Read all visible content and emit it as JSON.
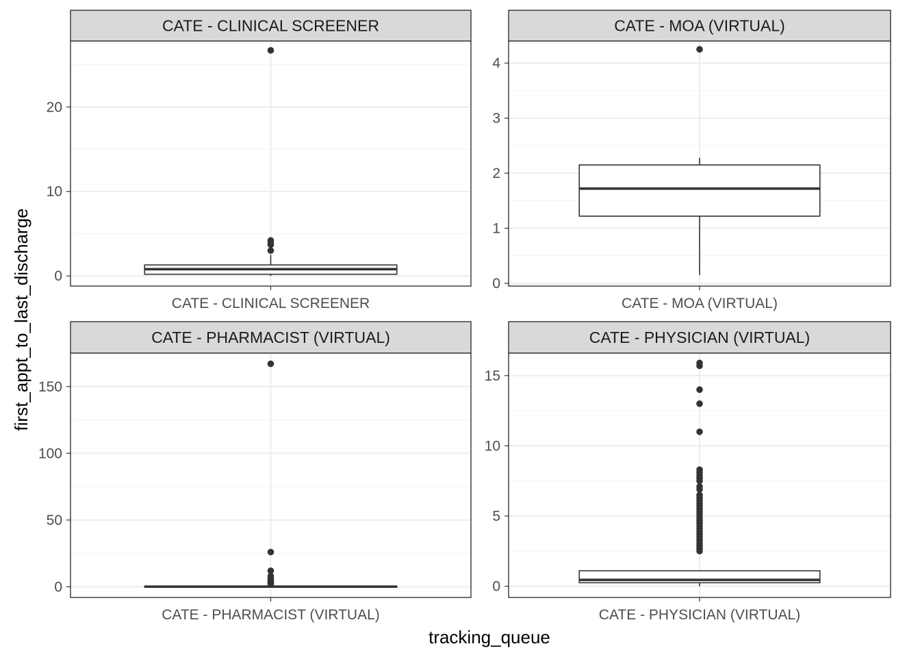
{
  "chart_data": {
    "type": "boxplot",
    "xlabel": "tracking_queue",
    "ylabel": "first_appt_to_last_discharge",
    "grid": true,
    "facets": [
      {
        "strip": "CATE - CLINICAL SCREENER",
        "category": "CATE - CLINICAL SCREENER",
        "ylim": [
          -1.2,
          27.8
        ],
        "y_ticks": [
          0,
          10,
          20
        ],
        "y_tick_labels": [
          "0",
          "10",
          "20"
        ],
        "box": {
          "q1": 0.2,
          "median": 0.8,
          "q3": 1.3,
          "whisker_low": 0.0,
          "whisker_high": 2.5
        },
        "outliers": [
          26.7,
          4.2,
          3.9,
          3.7,
          3.0
        ]
      },
      {
        "strip": "CATE - MOA (VIRTUAL)",
        "category": "CATE - MOA (VIRTUAL)",
        "ylim": [
          -0.05,
          4.4
        ],
        "y_ticks": [
          0,
          1,
          2,
          3,
          4
        ],
        "y_tick_labels": [
          "0",
          "1",
          "2",
          "3",
          "4"
        ],
        "box": {
          "q1": 1.22,
          "median": 1.72,
          "q3": 2.15,
          "whisker_low": 0.15,
          "whisker_high": 2.28
        },
        "outliers": [
          4.25
        ]
      },
      {
        "strip": "CATE - PHARMACIST (VIRTUAL)",
        "category": "CATE - PHARMACIST (VIRTUAL)",
        "ylim": [
          -8,
          175
        ],
        "y_ticks": [
          0,
          50,
          100,
          150
        ],
        "y_tick_labels": [
          "0",
          "50",
          "100",
          "150"
        ],
        "box": {
          "q1": 0.0,
          "median": 0.1,
          "q3": 0.3,
          "whisker_low": 0.0,
          "whisker_high": 0.7
        },
        "outliers": [
          167,
          26,
          12,
          8,
          6,
          5,
          4,
          3,
          2.5,
          2
        ]
      },
      {
        "strip": "CATE - PHYSICIAN (VIRTUAL)",
        "category": "CATE - PHYSICIAN (VIRTUAL)",
        "ylim": [
          -0.8,
          16.6
        ],
        "y_ticks": [
          0,
          5,
          10,
          15
        ],
        "y_tick_labels": [
          "0",
          "5",
          "10",
          "15"
        ],
        "box": {
          "q1": 0.25,
          "median": 0.45,
          "q3": 1.1,
          "whisker_low": 0.0,
          "whisker_high": 1.1
        },
        "outliers": [
          15.9,
          15.7,
          14.0,
          13.0,
          11.0,
          8.3,
          8.1,
          7.9,
          7.7,
          7.5,
          7.1,
          6.9,
          6.5,
          6.3,
          6.1,
          5.9,
          5.7,
          5.5,
          5.3,
          5.1,
          4.9,
          4.7,
          4.5,
          4.3,
          4.1,
          3.9,
          3.7,
          3.5,
          3.3,
          3.1,
          2.9,
          2.7,
          2.5
        ]
      }
    ]
  }
}
